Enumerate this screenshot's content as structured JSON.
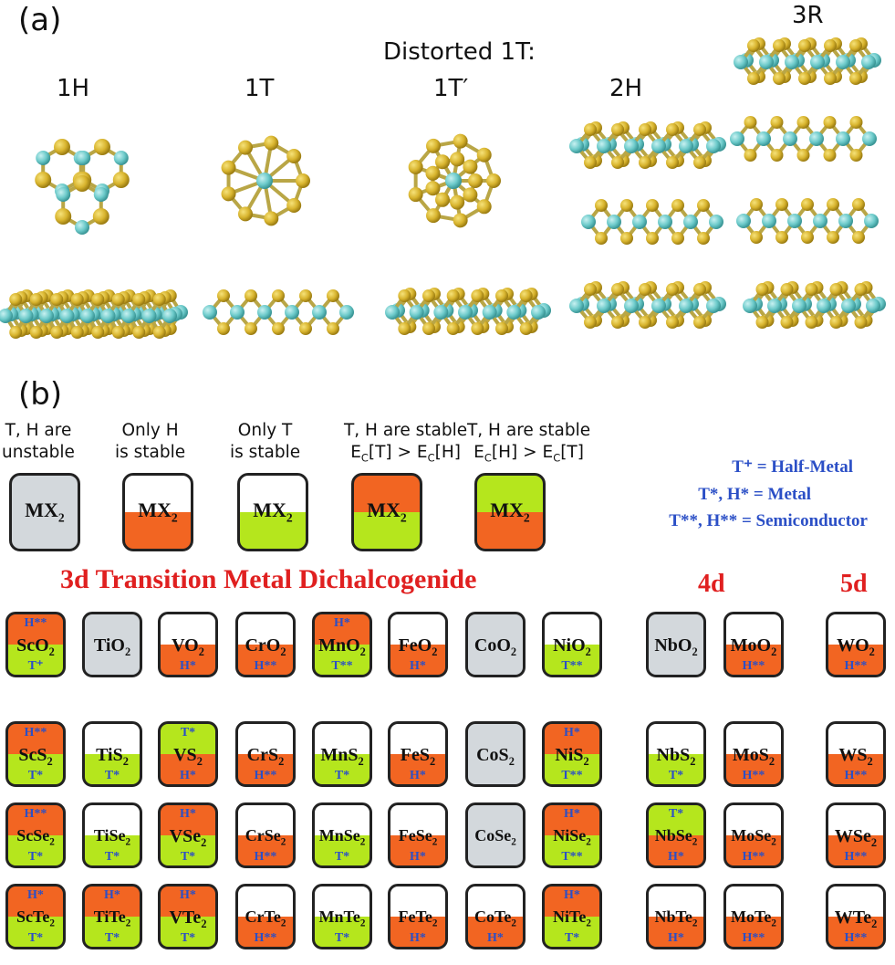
{
  "panel_a": {
    "label": "(a)",
    "distorted_caption": "Distorted 1T:",
    "phases": [
      "1H",
      "1T",
      "1T′",
      "2H",
      "3R"
    ]
  },
  "panel_b": {
    "label": "(b)",
    "legend": [
      {
        "line1": "T, H are",
        "line2": "unstable",
        "formula": "MX",
        "fill": "gray"
      },
      {
        "line1": "Only H",
        "line2": "is stable",
        "formula": "MX",
        "fill": "orange-bottom"
      },
      {
        "line1": "Only T",
        "line2": "is stable",
        "formula": "MX",
        "fill": "green-bottom"
      },
      {
        "line1": "T, H are stable",
        "line2": "E_C[T] > E_C[H]",
        "formula": "MX",
        "fill": "orange-green"
      },
      {
        "line1": "T, H are stable",
        "line2": "E_C[H] > E_C[T]",
        "formula": "MX",
        "fill": "green-orange"
      }
    ],
    "key": {
      "half_metal": "T⁺ = Half-Metal",
      "metal": "T*, H* = Metal",
      "semiconductor": "T**, H** = Semiconductor"
    },
    "headers": {
      "d3": "3d Transition Metal Dichalcogenide",
      "d4": "4d",
      "d5": "5d"
    },
    "colors": {
      "orange": "#f26522",
      "green": "#b5e61d",
      "gray": "#d3d8dc",
      "blue_text": "#2b4fc6",
      "red_text": "#e02020"
    },
    "rows": [
      [
        {
          "m": "Sc",
          "x": "O",
          "top": "H**",
          "bot": "T⁺",
          "fill": "orange-green"
        },
        {
          "m": "Ti",
          "x": "O",
          "top": "",
          "bot": "",
          "fill": "gray"
        },
        {
          "m": "V",
          "x": "O",
          "top": "",
          "bot": "H*",
          "fill": "orange-bottom"
        },
        {
          "m": "Cr",
          "x": "O",
          "top": "",
          "bot": "H**",
          "fill": "orange-bottom"
        },
        {
          "m": "Mn",
          "x": "O",
          "top": "H*",
          "bot": "T**",
          "fill": "orange-green"
        },
        {
          "m": "Fe",
          "x": "O",
          "top": "",
          "bot": "H*",
          "fill": "orange-bottom"
        },
        {
          "m": "Co",
          "x": "O",
          "top": "",
          "bot": "",
          "fill": "gray"
        },
        {
          "m": "Ni",
          "x": "O",
          "top": "",
          "bot": "T**",
          "fill": "green-bottom"
        },
        {
          "m": "Nb",
          "x": "O",
          "top": "",
          "bot": "",
          "fill": "gray"
        },
        {
          "m": "Mo",
          "x": "O",
          "top": "",
          "bot": "H**",
          "fill": "orange-bottom"
        },
        {
          "m": "W",
          "x": "O",
          "top": "",
          "bot": "H**",
          "fill": "orange-bottom"
        }
      ],
      [
        {
          "m": "Sc",
          "x": "S",
          "top": "H**",
          "bot": "T*",
          "fill": "orange-green"
        },
        {
          "m": "Ti",
          "x": "S",
          "top": "",
          "bot": "T*",
          "fill": "green-bottom"
        },
        {
          "m": "V",
          "x": "S",
          "top": "T*",
          "bot": "H*",
          "fill": "green-orange"
        },
        {
          "m": "Cr",
          "x": "S",
          "top": "",
          "bot": "H**",
          "fill": "orange-bottom"
        },
        {
          "m": "Mn",
          "x": "S",
          "top": "",
          "bot": "T*",
          "fill": "green-bottom"
        },
        {
          "m": "Fe",
          "x": "S",
          "top": "",
          "bot": "H*",
          "fill": "orange-bottom"
        },
        {
          "m": "Co",
          "x": "S",
          "top": "",
          "bot": "",
          "fill": "gray"
        },
        {
          "m": "Ni",
          "x": "S",
          "top": "H*",
          "bot": "T**",
          "fill": "orange-green"
        },
        {
          "m": "Nb",
          "x": "S",
          "top": "",
          "bot": "T*",
          "fill": "green-bottom"
        },
        {
          "m": "Mo",
          "x": "S",
          "top": "",
          "bot": "H**",
          "fill": "orange-bottom"
        },
        {
          "m": "W",
          "x": "S",
          "top": "",
          "bot": "H**",
          "fill": "orange-bottom"
        }
      ],
      [
        {
          "m": "Sc",
          "x": "Se",
          "top": "H**",
          "bot": "T*",
          "fill": "orange-green"
        },
        {
          "m": "Ti",
          "x": "Se",
          "top": "",
          "bot": "T*",
          "fill": "green-bottom"
        },
        {
          "m": "V",
          "x": "Se",
          "top": "H*",
          "bot": "T*",
          "fill": "orange-green"
        },
        {
          "m": "Cr",
          "x": "Se",
          "top": "",
          "bot": "H**",
          "fill": "orange-bottom"
        },
        {
          "m": "Mn",
          "x": "Se",
          "top": "",
          "bot": "T*",
          "fill": "green-bottom"
        },
        {
          "m": "Fe",
          "x": "Se",
          "top": "",
          "bot": "H*",
          "fill": "orange-bottom"
        },
        {
          "m": "Co",
          "x": "Se",
          "top": "",
          "bot": "",
          "fill": "gray"
        },
        {
          "m": "Ni",
          "x": "Se",
          "top": "H*",
          "bot": "T**",
          "fill": "orange-green"
        },
        {
          "m": "Nb",
          "x": "Se",
          "top": "T*",
          "bot": "H*",
          "fill": "green-orange"
        },
        {
          "m": "Mo",
          "x": "Se",
          "top": "",
          "bot": "H**",
          "fill": "orange-bottom"
        },
        {
          "m": "W",
          "x": "Se",
          "top": "",
          "bot": "H**",
          "fill": "orange-bottom"
        }
      ],
      [
        {
          "m": "Sc",
          "x": "Te",
          "top": "H*",
          "bot": "T*",
          "fill": "orange-green"
        },
        {
          "m": "Ti",
          "x": "Te",
          "top": "H*",
          "bot": "T*",
          "fill": "orange-green"
        },
        {
          "m": "V",
          "x": "Te",
          "top": "H*",
          "bot": "T*",
          "fill": "orange-green"
        },
        {
          "m": "Cr",
          "x": "Te",
          "top": "",
          "bot": "H**",
          "fill": "orange-bottom"
        },
        {
          "m": "Mn",
          "x": "Te",
          "top": "",
          "bot": "T*",
          "fill": "green-bottom"
        },
        {
          "m": "Fe",
          "x": "Te",
          "top": "",
          "bot": "H*",
          "fill": "orange-bottom"
        },
        {
          "m": "Co",
          "x": "Te",
          "top": "",
          "bot": "H*",
          "fill": "orange-bottom"
        },
        {
          "m": "Ni",
          "x": "Te",
          "top": "H*",
          "bot": "T*",
          "fill": "orange-green"
        },
        {
          "m": "Nb",
          "x": "Te",
          "top": "",
          "bot": "H*",
          "fill": "orange-bottom"
        },
        {
          "m": "Mo",
          "x": "Te",
          "top": "",
          "bot": "H**",
          "fill": "orange-bottom"
        },
        {
          "m": "W",
          "x": "Te",
          "top": "",
          "bot": "H**",
          "fill": "orange-bottom"
        }
      ]
    ]
  }
}
